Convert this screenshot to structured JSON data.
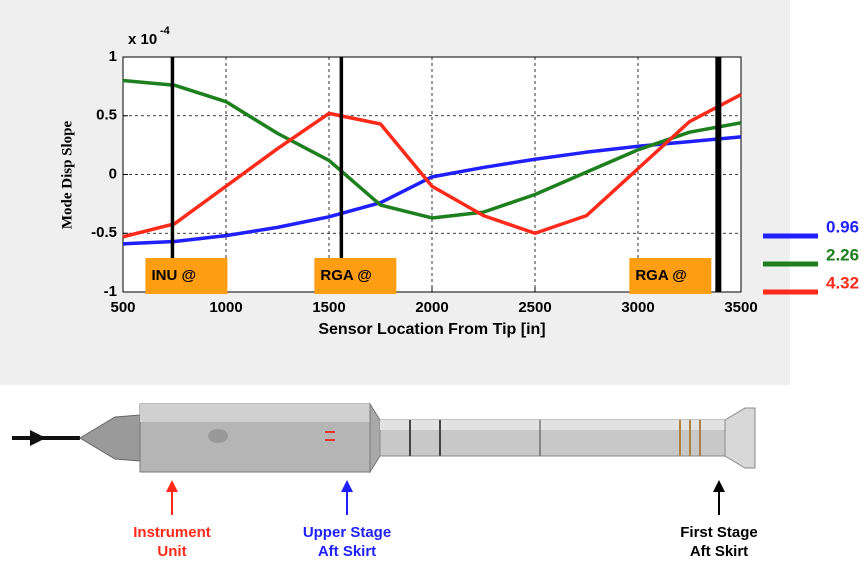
{
  "chart_data": {
    "type": "line",
    "multiplier": {
      "base": "x 10",
      "exponent": "-4"
    },
    "ylabel": "Mode Disp Slope",
    "xlabel": "Sensor Location From Tip [in]",
    "x": [
      500,
      750,
      1000,
      1250,
      1500,
      1750,
      2000,
      2250,
      2500,
      2750,
      3000,
      3250,
      3500
    ],
    "series": [
      {
        "name": "0.96",
        "color": "#1f1fff",
        "values": [
          -0.59,
          -0.57,
          -0.52,
          -0.45,
          -0.36,
          -0.24,
          -0.02,
          0.06,
          0.13,
          0.19,
          0.24,
          0.28,
          0.32
        ]
      },
      {
        "name": "2.26",
        "color": "#1e7f1e",
        "values": [
          0.8,
          0.76,
          0.62,
          0.35,
          0.12,
          -0.26,
          -0.37,
          -0.32,
          -0.17,
          0.02,
          0.21,
          0.36,
          0.44
        ]
      },
      {
        "name": "4.32",
        "color": "#ff2a1a",
        "values": [
          -0.53,
          -0.42,
          -0.1,
          0.22,
          0.52,
          0.43,
          -0.1,
          -0.35,
          -0.5,
          -0.35,
          0.05,
          0.45,
          0.68
        ]
      }
    ],
    "xlim": [
      500,
      3500
    ],
    "ylim": [
      -1,
      1
    ],
    "xticks": [
      500,
      1000,
      1500,
      2000,
      2500,
      3000,
      3500
    ],
    "yticks": [
      -1,
      -0.5,
      0,
      0.5,
      1
    ],
    "grid": true,
    "markers": [
      {
        "x": 740,
        "label": "INU @"
      },
      {
        "x": 1560,
        "label": "RGA @"
      },
      {
        "x": 3390,
        "label": "RGA @"
      }
    ],
    "rocket_labels": [
      {
        "lines": [
          "Instrument",
          "Unit"
        ],
        "color": "#ff2a1a"
      },
      {
        "lines": [
          "Upper Stage",
          "Aft Skirt"
        ],
        "color": "#1f1fff"
      },
      {
        "lines": [
          "First Stage",
          "Aft Skirt"
        ],
        "color": "#000000"
      }
    ]
  }
}
